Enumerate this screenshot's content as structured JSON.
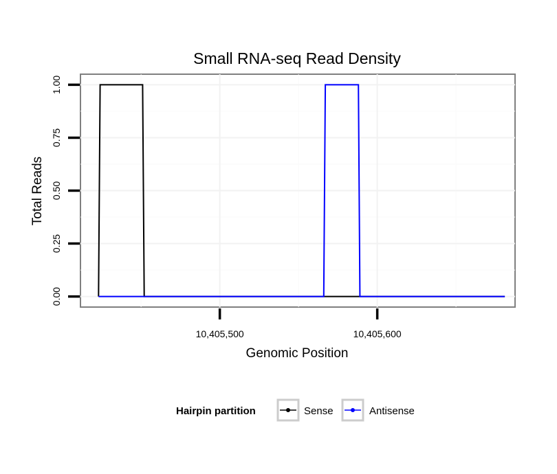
{
  "chart_data": {
    "type": "line",
    "title": "Small RNA-seq Read Density",
    "xlabel": "Genomic Position",
    "ylabel": "Total Reads",
    "xlim": [
      10405411.5,
      10405687.5
    ],
    "ylim": [
      -0.05,
      1.05
    ],
    "x_ticks": [
      10405500,
      10405600
    ],
    "x_tick_labels": [
      "10,405,500",
      "10,405,600"
    ],
    "y_ticks": [
      0,
      0.25,
      0.5,
      0.75,
      1
    ],
    "y_tick_labels": [
      "0.00",
      "0.25",
      "0.50",
      "0.75",
      "1.00"
    ],
    "grid": true,
    "legend": {
      "title": "Hairpin partition",
      "position": "bottom",
      "entries": [
        "Sense",
        "Antisense"
      ]
    },
    "series": [
      {
        "name": "Sense",
        "color": "#000000",
        "x": [
          10405423,
          10405424,
          10405451,
          10405452,
          10405681
        ],
        "y": [
          0,
          1,
          1,
          0,
          0
        ]
      },
      {
        "name": "Antisense",
        "color": "#0000ff",
        "x": [
          10405423,
          10405566,
          10405567,
          10405588,
          10405589,
          10405681
        ],
        "y": [
          0,
          0,
          1,
          1,
          0,
          0
        ]
      }
    ]
  }
}
